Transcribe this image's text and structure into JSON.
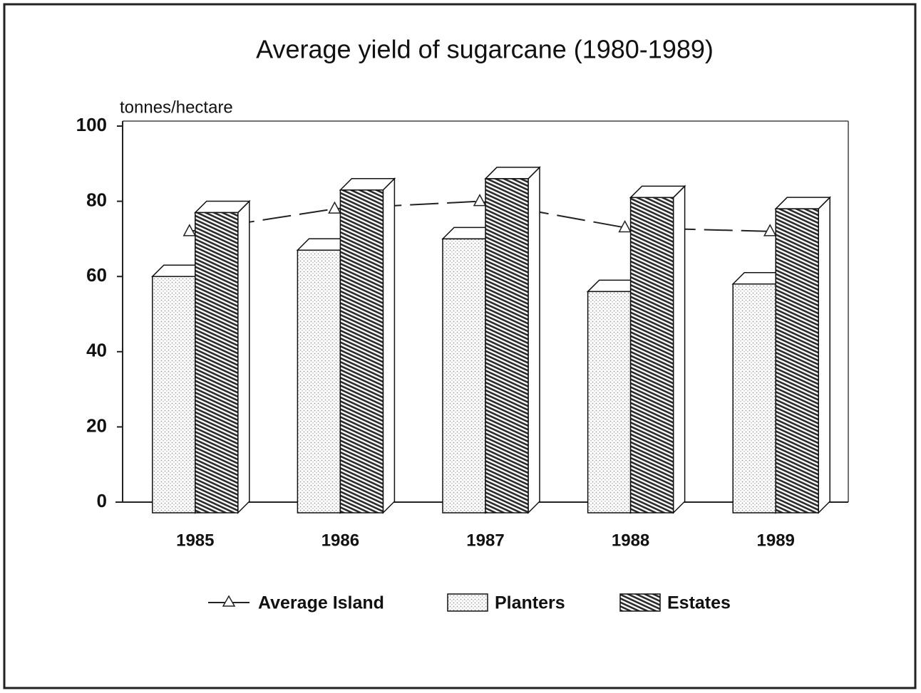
{
  "chart_data": {
    "type": "bar",
    "title": "Average yield of sugarcane (1980-1989)",
    "y_label": "tonnes/hectare",
    "categories": [
      "1985",
      "1986",
      "1987",
      "1988",
      "1989"
    ],
    "series": [
      {
        "name": "Average Island",
        "type": "line",
        "color": "#222222",
        "values": [
          72,
          78,
          80,
          73,
          72
        ]
      },
      {
        "name": "Planters",
        "type": "bar",
        "color": "#9a9a9a",
        "values": [
          60,
          67,
          70,
          56,
          58
        ]
      },
      {
        "name": "Estates",
        "type": "bar",
        "color": "#2a2a2a",
        "values": [
          77,
          83,
          86,
          81,
          78
        ]
      }
    ],
    "ylim": [
      0,
      100
    ],
    "yticks": [
      0,
      20,
      40,
      60,
      80,
      100
    ],
    "grid": false
  }
}
